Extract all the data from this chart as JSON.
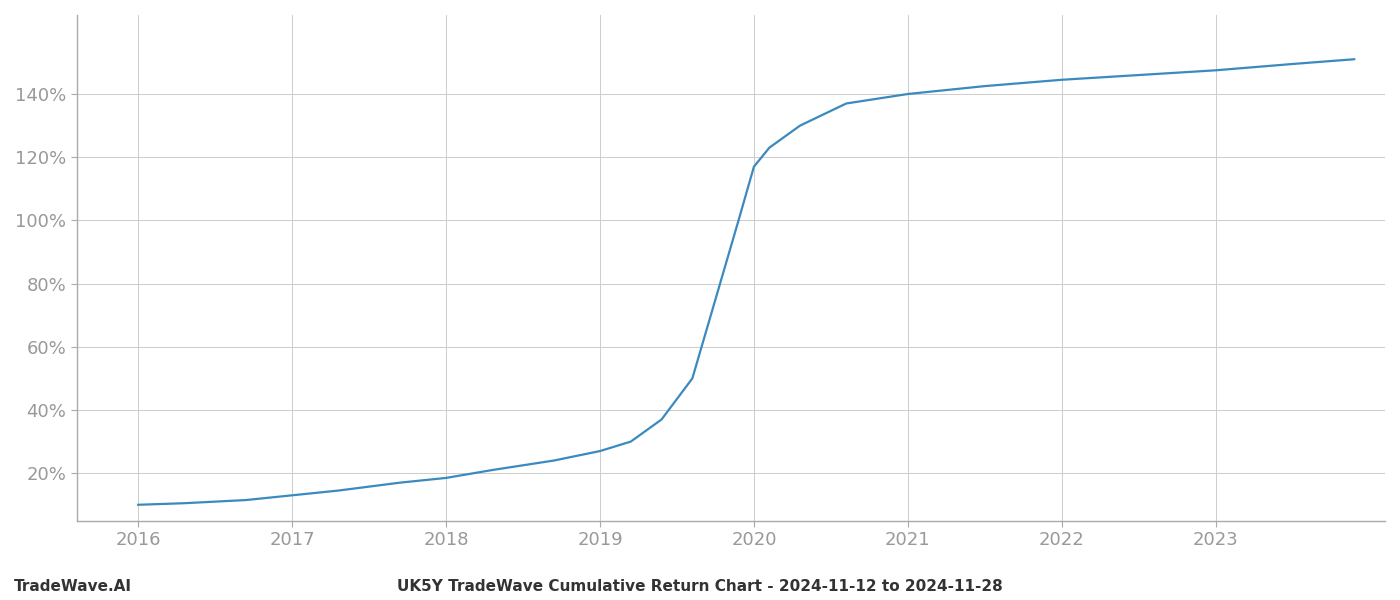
{
  "title": "UK5Y TradeWave Cumulative Return Chart - 2024-11-12 to 2024-11-28",
  "watermark": "TradeWave.AI",
  "line_color": "#3a8abf",
  "background_color": "#ffffff",
  "grid_color": "#cccccc",
  "x_years": [
    2016.0,
    2016.3,
    2016.7,
    2017.0,
    2017.3,
    2017.7,
    2018.0,
    2018.3,
    2018.7,
    2019.0,
    2019.2,
    2019.4,
    2019.6,
    2019.75,
    2019.9,
    2020.0,
    2020.1,
    2020.3,
    2020.6,
    2021.0,
    2021.5,
    2022.0,
    2022.5,
    2023.0,
    2023.5,
    2023.9
  ],
  "y_values": [
    10.0,
    10.5,
    11.5,
    13.0,
    14.5,
    17.0,
    18.5,
    21.0,
    24.0,
    27.0,
    30.0,
    37.0,
    50.0,
    75.0,
    100.0,
    117.0,
    123.0,
    130.0,
    137.0,
    140.0,
    142.5,
    144.5,
    146.0,
    147.5,
    149.5,
    151.0
  ],
  "ylim_min": 5,
  "ylim_max": 165,
  "xlim_min": 2015.6,
  "xlim_max": 2024.1,
  "yticks": [
    20,
    40,
    60,
    80,
    100,
    120,
    140
  ],
  "xticks": [
    2016,
    2017,
    2018,
    2019,
    2020,
    2021,
    2022,
    2023
  ],
  "tick_label_color": "#999999",
  "title_color": "#333333",
  "watermark_color": "#333333",
  "spine_color": "#aaaaaa",
  "line_width": 1.6,
  "title_fontsize": 11,
  "tick_fontsize": 13,
  "watermark_fontsize": 11
}
